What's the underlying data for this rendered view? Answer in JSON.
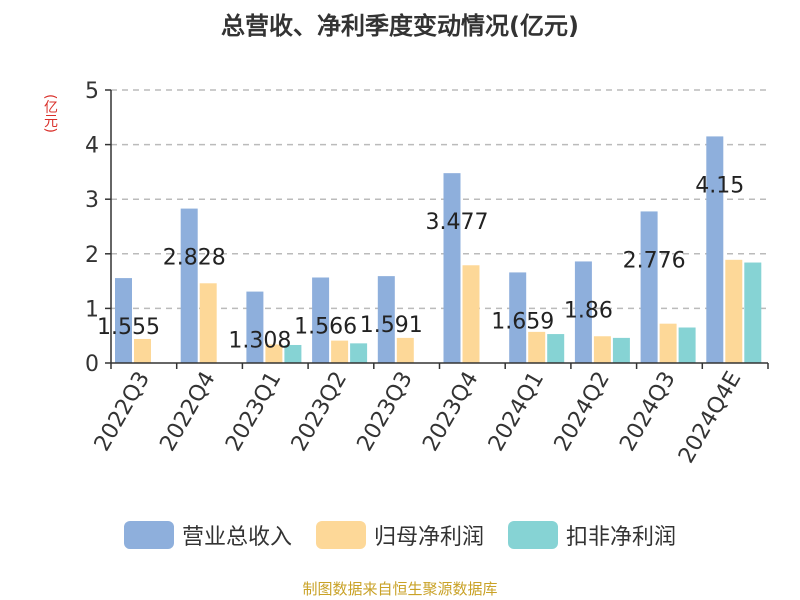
{
  "title": "总营收、净利季度变动情况(亿元)",
  "unit_label": "(亿元)",
  "source": "制图数据来自恒生聚源数据库",
  "colors": {
    "revenue": "#8eafdc",
    "net_profit": "#fdd898",
    "deducted_profit": "#86d3d4",
    "axis": "#333333",
    "grid": "#bbbbbb",
    "unit": "#d9302a",
    "source": "#c9a227"
  },
  "chart_data": {
    "type": "bar",
    "title": "总营收、净利季度变动情况(亿元)",
    "ylabel": "(亿元)",
    "xlabel": "",
    "ylim": [
      0,
      5
    ],
    "yticks": [
      0,
      1,
      2,
      3,
      4,
      5
    ],
    "grid": true,
    "legend_position": "bottom",
    "categories": [
      "2022Q3",
      "2022Q4",
      "2023Q1",
      "2023Q2",
      "2023Q3",
      "2023Q4",
      "2024Q1",
      "2024Q2",
      "2024Q3",
      "2024Q4E"
    ],
    "series": [
      {
        "name": "营业总收入",
        "values": [
          1.555,
          2.828,
          1.308,
          1.566,
          1.591,
          3.477,
          1.659,
          1.86,
          2.776,
          4.15
        ]
      },
      {
        "name": "归母净利润",
        "values": [
          0.44,
          1.46,
          0.34,
          0.41,
          0.46,
          1.79,
          0.57,
          0.49,
          0.72,
          1.89
        ]
      },
      {
        "name": "扣非净利润",
        "values": [
          null,
          null,
          0.33,
          0.36,
          null,
          null,
          0.53,
          0.46,
          0.65,
          1.84
        ]
      }
    ],
    "data_labels": [
      "1.555",
      "2.828",
      "1.308",
      "1.566",
      "1.591",
      "3.477",
      "1.659",
      "1.86",
      "2.776",
      "4.15"
    ]
  }
}
